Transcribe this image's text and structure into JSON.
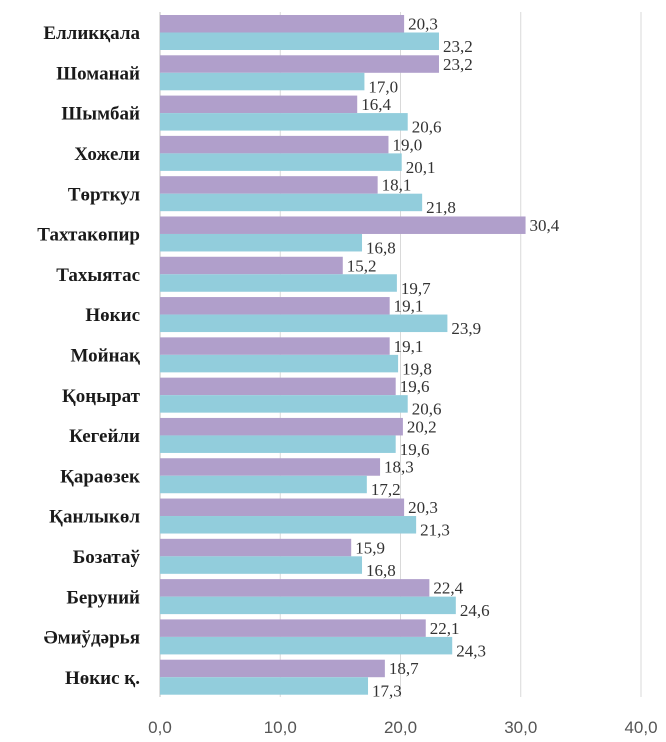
{
  "chart_data": {
    "type": "bar",
    "orientation": "horizontal",
    "categories": [
      "Елликқала",
      "Шоманай",
      "Шымбай",
      "Хожели",
      "Төрткул",
      "Тахтакөпир",
      "Тахыятас",
      "Нөкис",
      "Мойнақ",
      "Қоңырат",
      "Кегейли",
      "Қараөзек",
      "Қанлыкөл",
      "Бозатаў",
      "Беруний",
      "Әмиўдәрья",
      "Нөкис қ."
    ],
    "series": [
      {
        "color": "#b09fcb",
        "values": [
          20.3,
          23.2,
          16.4,
          19.0,
          18.1,
          30.4,
          15.2,
          19.1,
          19.1,
          19.6,
          20.2,
          18.3,
          20.3,
          15.9,
          22.4,
          22.1,
          18.7
        ],
        "labels": [
          "20,3",
          "23,2",
          "16,4",
          "19,0",
          "18,1",
          "30,4",
          "15,2",
          "19,1",
          "19,1",
          "19,6",
          "20,2",
          "18,3",
          "20,3",
          "15,9",
          "22,4",
          "22,1",
          "18,7"
        ]
      },
      {
        "color": "#92cddc",
        "values": [
          23.2,
          17.0,
          20.6,
          20.1,
          21.8,
          16.8,
          19.7,
          23.9,
          19.8,
          20.6,
          19.6,
          17.2,
          21.3,
          16.8,
          24.6,
          24.3,
          17.3
        ],
        "labels": [
          "23,2",
          "17,0",
          "20,6",
          "20,1",
          "21,8",
          "16,8",
          "19,7",
          "23,9",
          "19,8",
          "20,6",
          "19,6",
          "17,2",
          "21,3",
          "16,8",
          "24,6",
          "24,3",
          "17,3"
        ]
      }
    ],
    "xlim": [
      0,
      40
    ],
    "xticks": [
      0,
      10,
      20,
      30,
      40
    ],
    "xtick_labels": [
      "0,0",
      "10,0",
      "20,0",
      "30,0",
      "40,0"
    ],
    "grid": true,
    "legend": false
  }
}
